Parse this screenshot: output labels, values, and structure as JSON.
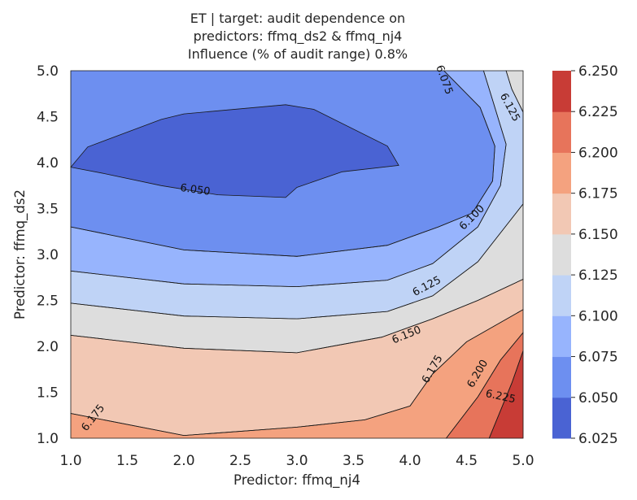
{
  "chart_data": {
    "type": "contour",
    "title": [
      "ET | target: audit dependence on",
      "predictors: ffmq_ds2 & ffmq_nj4",
      "Influence (% of audit range) 0.8%"
    ],
    "xlabel": "Predictor: ffmq_nj4",
    "ylabel": "Predictor: ffmq_ds2",
    "xlim": [
      1.0,
      5.0
    ],
    "ylim": [
      1.0,
      5.0
    ],
    "x_ticks": [
      "1.0",
      "1.5",
      "2.0",
      "2.5",
      "3.0",
      "3.5",
      "4.0",
      "4.5",
      "5.0"
    ],
    "y_ticks": [
      "1.0",
      "1.5",
      "2.0",
      "2.5",
      "3.0",
      "3.5",
      "4.0",
      "4.5",
      "5.0"
    ],
    "colorbar": {
      "levels": [
        6.025,
        6.05,
        6.075,
        6.1,
        6.125,
        6.15,
        6.175,
        6.2,
        6.225,
        6.25
      ],
      "tick_labels": [
        "6.025",
        "6.050",
        "6.075",
        "6.100",
        "6.125",
        "6.150",
        "6.175",
        "6.200",
        "6.225",
        "6.250"
      ],
      "colors": [
        "#4a63d3",
        "#6d8ff0",
        "#97b4fd",
        "#bfd3f6",
        "#dddddd",
        "#f2c8b4",
        "#f4a27f",
        "#e7745b",
        "#c83c36"
      ]
    },
    "contour_labels": [
      {
        "text": "6.050",
        "x": 2.1,
        "y": 3.7
      },
      {
        "text": "6.075",
        "x": 4.3,
        "y": 4.9
      },
      {
        "text": "6.100",
        "x": 4.55,
        "y": 3.4
      },
      {
        "text": "6.125",
        "x": 4.88,
        "y": 4.6
      },
      {
        "text": "6.125",
        "x": 4.15,
        "y": 2.65
      },
      {
        "text": "6.150",
        "x": 3.97,
        "y": 2.12
      },
      {
        "text": "6.175",
        "x": 4.2,
        "y": 1.75
      },
      {
        "text": "6.175",
        "x": 1.2,
        "y": 1.22
      },
      {
        "text": "6.200",
        "x": 4.6,
        "y": 1.7
      },
      {
        "text": "6.225",
        "x": 4.8,
        "y": 1.45
      }
    ],
    "regions": [
      {
        "level_index": 1,
        "points": [
          [
            1.0,
            5.0
          ],
          [
            4.3,
            5.0
          ],
          [
            4.62,
            4.6
          ],
          [
            4.75,
            4.18
          ],
          [
            4.73,
            3.8
          ],
          [
            4.55,
            3.45
          ],
          [
            4.25,
            3.3
          ],
          [
            3.8,
            3.1
          ],
          [
            3.0,
            2.98
          ],
          [
            2.0,
            3.05
          ],
          [
            1.0,
            3.3
          ]
        ]
      },
      {
        "level_index": 0,
        "points": [
          [
            1.0,
            3.95
          ],
          [
            1.15,
            4.17
          ],
          [
            1.8,
            4.47
          ],
          [
            2.0,
            4.53
          ],
          [
            2.9,
            4.63
          ],
          [
            3.15,
            4.58
          ],
          [
            3.8,
            4.18
          ],
          [
            3.9,
            3.97
          ],
          [
            3.4,
            3.9
          ],
          [
            3.0,
            3.73
          ],
          [
            2.9,
            3.62
          ],
          [
            2.3,
            3.65
          ],
          [
            1.8,
            3.75
          ],
          [
            1.3,
            3.88
          ]
        ]
      },
      {
        "level_index": 2,
        "points": [
          [
            4.3,
            5.0
          ],
          [
            4.62,
            4.6
          ],
          [
            4.75,
            4.18
          ],
          [
            4.73,
            3.8
          ],
          [
            4.55,
            3.45
          ],
          [
            4.25,
            3.3
          ],
          [
            3.8,
            3.1
          ],
          [
            3.0,
            2.98
          ],
          [
            2.0,
            3.05
          ],
          [
            1.0,
            3.3
          ],
          [
            1.0,
            2.82
          ],
          [
            2.0,
            2.68
          ],
          [
            3.0,
            2.65
          ],
          [
            3.8,
            2.72
          ],
          [
            4.2,
            2.9
          ],
          [
            4.6,
            3.3
          ],
          [
            4.8,
            3.75
          ],
          [
            4.85,
            4.2
          ],
          [
            4.75,
            4.6
          ],
          [
            4.65,
            5.0
          ]
        ]
      },
      {
        "level_index": 3,
        "points": [
          [
            4.65,
            5.0
          ],
          [
            4.75,
            4.6
          ],
          [
            4.85,
            4.2
          ],
          [
            4.8,
            3.75
          ],
          [
            4.6,
            3.3
          ],
          [
            4.2,
            2.9
          ],
          [
            3.8,
            2.72
          ],
          [
            3.0,
            2.65
          ],
          [
            2.0,
            2.68
          ],
          [
            1.0,
            2.82
          ],
          [
            1.0,
            2.47
          ],
          [
            2.0,
            2.33
          ],
          [
            3.0,
            2.3
          ],
          [
            3.8,
            2.38
          ],
          [
            4.2,
            2.55
          ],
          [
            4.6,
            2.92
          ],
          [
            5.0,
            3.55
          ],
          [
            5.0,
            4.55
          ],
          [
            4.9,
            4.8
          ],
          [
            4.85,
            5.0
          ]
        ]
      },
      {
        "level_index": 4,
        "points": [
          [
            4.85,
            5.0
          ],
          [
            4.9,
            4.8
          ],
          [
            5.0,
            4.55
          ],
          [
            5.0,
            3.55
          ],
          [
            4.6,
            2.92
          ],
          [
            4.2,
            2.55
          ],
          [
            3.8,
            2.38
          ],
          [
            3.0,
            2.3
          ],
          [
            2.0,
            2.33
          ],
          [
            1.0,
            2.47
          ],
          [
            1.0,
            2.12
          ],
          [
            2.0,
            1.98
          ],
          [
            3.0,
            1.93
          ],
          [
            3.75,
            2.1
          ],
          [
            4.2,
            2.3
          ],
          [
            4.6,
            2.5
          ],
          [
            5.0,
            2.73
          ],
          [
            5.0,
            5.0
          ]
        ]
      },
      {
        "level_index": 5,
        "points": [
          [
            1.0,
            2.12
          ],
          [
            2.0,
            1.98
          ],
          [
            3.0,
            1.93
          ],
          [
            3.75,
            2.1
          ],
          [
            4.2,
            2.3
          ],
          [
            4.6,
            2.5
          ],
          [
            5.0,
            2.73
          ],
          [
            5.0,
            2.4
          ],
          [
            4.5,
            2.05
          ],
          [
            4.2,
            1.7
          ],
          [
            4.0,
            1.35
          ],
          [
            3.6,
            1.2
          ],
          [
            3.0,
            1.12
          ],
          [
            2.0,
            1.03
          ],
          [
            1.0,
            1.27
          ]
        ]
      },
      {
        "level_index": 6,
        "points": [
          [
            1.0,
            1.27
          ],
          [
            2.0,
            1.03
          ],
          [
            3.0,
            1.12
          ],
          [
            3.6,
            1.2
          ],
          [
            4.0,
            1.35
          ],
          [
            4.2,
            1.7
          ],
          [
            4.5,
            2.05
          ],
          [
            5.0,
            2.4
          ],
          [
            5.0,
            2.15
          ],
          [
            4.8,
            1.85
          ],
          [
            4.6,
            1.45
          ],
          [
            4.32,
            1.0
          ],
          [
            1.0,
            1.0
          ]
        ]
      },
      {
        "level_index": 7,
        "points": [
          [
            4.32,
            1.0
          ],
          [
            4.6,
            1.45
          ],
          [
            4.8,
            1.85
          ],
          [
            5.0,
            2.15
          ],
          [
            5.0,
            1.95
          ],
          [
            4.9,
            1.6
          ],
          [
            4.7,
            1.0
          ]
        ]
      },
      {
        "level_index": 8,
        "points": [
          [
            4.7,
            1.0
          ],
          [
            4.9,
            1.6
          ],
          [
            5.0,
            1.95
          ],
          [
            5.0,
            1.0
          ]
        ]
      }
    ]
  }
}
